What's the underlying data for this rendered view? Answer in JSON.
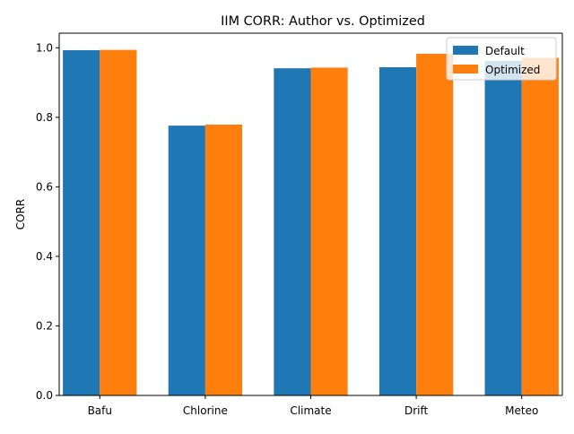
{
  "chart_data": {
    "type": "bar",
    "title": "IIM CORR: Author vs. Optimized",
    "xlabel": "",
    "ylabel": "CORR",
    "categories": [
      "Bafu",
      "Chlorine",
      "Climate",
      "Drift",
      "Meteo"
    ],
    "series": [
      {
        "name": "Default",
        "color": "#1f77b4",
        "values": [
          0.993,
          0.776,
          0.941,
          0.944,
          0.962
        ]
      },
      {
        "name": "Optimized",
        "color": "#ff7f0e",
        "values": [
          0.994,
          0.779,
          0.943,
          0.983,
          0.971
        ]
      }
    ],
    "ylim": [
      0,
      1.042
    ],
    "yticks": [
      0.0,
      0.2,
      0.4,
      0.6,
      0.8,
      1.0
    ],
    "ytick_labels": [
      "0.0",
      "0.2",
      "0.4",
      "0.6",
      "0.8",
      "1.0"
    ],
    "grid": false,
    "legend_position": "top-right"
  }
}
